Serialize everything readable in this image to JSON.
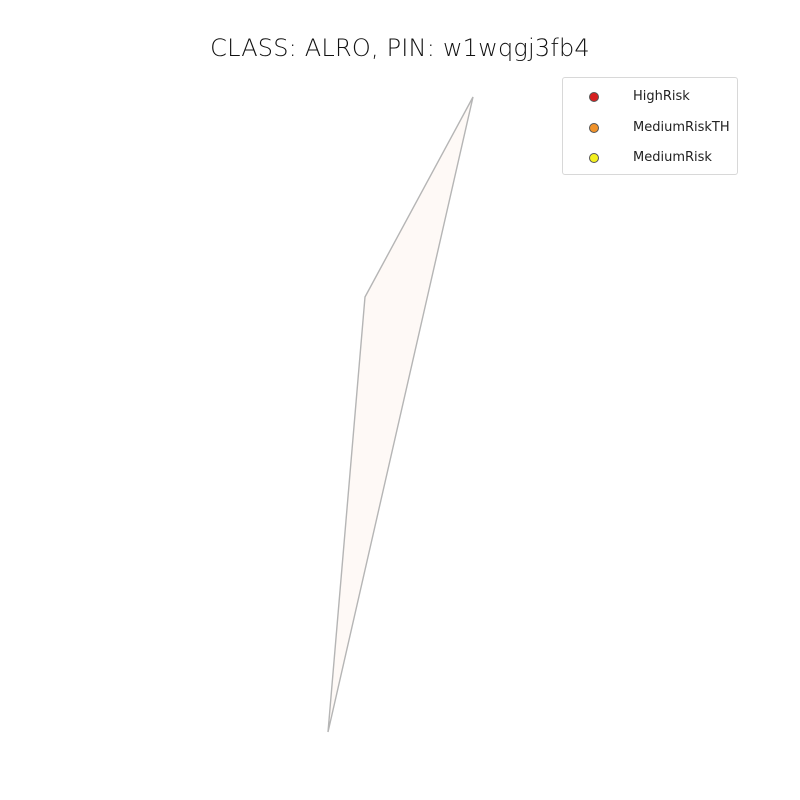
{
  "title": "CLASS: ALRO, PIN: w1wqgj3fb4",
  "map": {
    "parcel_fill": "#fef9f6",
    "parcel_stroke": "#b5b5b5"
  },
  "legend": {
    "items": [
      {
        "label": "HighRisk",
        "color": "#d62020"
      },
      {
        "label": "MediumRiskTH",
        "color": "#f0922a"
      },
      {
        "label": "MediumRisk",
        "color": "#f4f01e"
      }
    ]
  }
}
